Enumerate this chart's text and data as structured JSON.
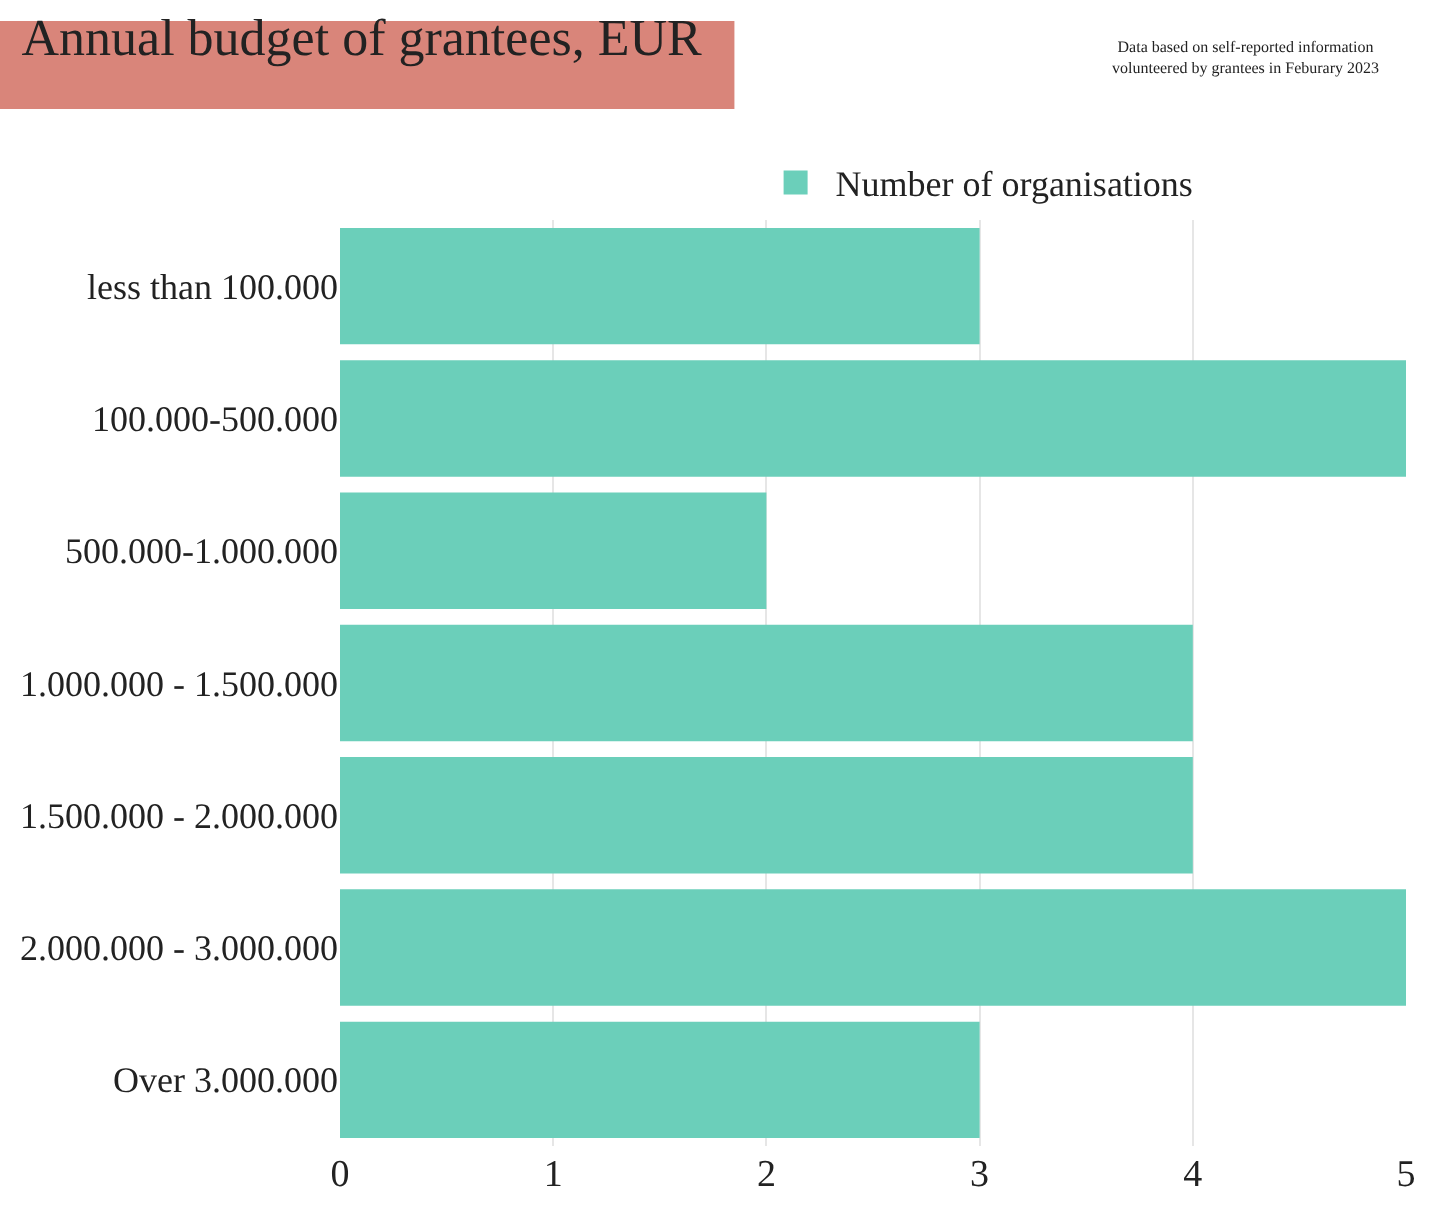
{
  "chart_data": {
    "type": "bar",
    "orientation": "horizontal",
    "title": "Annual budget of grantees, EUR",
    "annotations": [
      "Data based on self-reported information\nvolunteered by grantees in Feburary 2023"
    ],
    "categories": [
      "less than 100.000",
      "100.000-500.000",
      "500.000-1.000.000",
      "1.000.000 - 1.500.000",
      "1.500.000 - 2.000.000",
      "2.000.000 - 3.000.000",
      "Over 3.000.000"
    ],
    "series": [
      {
        "name": "Number of organisations",
        "color": "#6bcfba",
        "values": [
          3,
          5,
          2,
          4,
          4,
          5,
          3
        ]
      }
    ],
    "xlim": [
      0,
      5
    ],
    "xticks": [
      0,
      1,
      2,
      3,
      4,
      5
    ],
    "grid": "x",
    "legend": "top"
  }
}
